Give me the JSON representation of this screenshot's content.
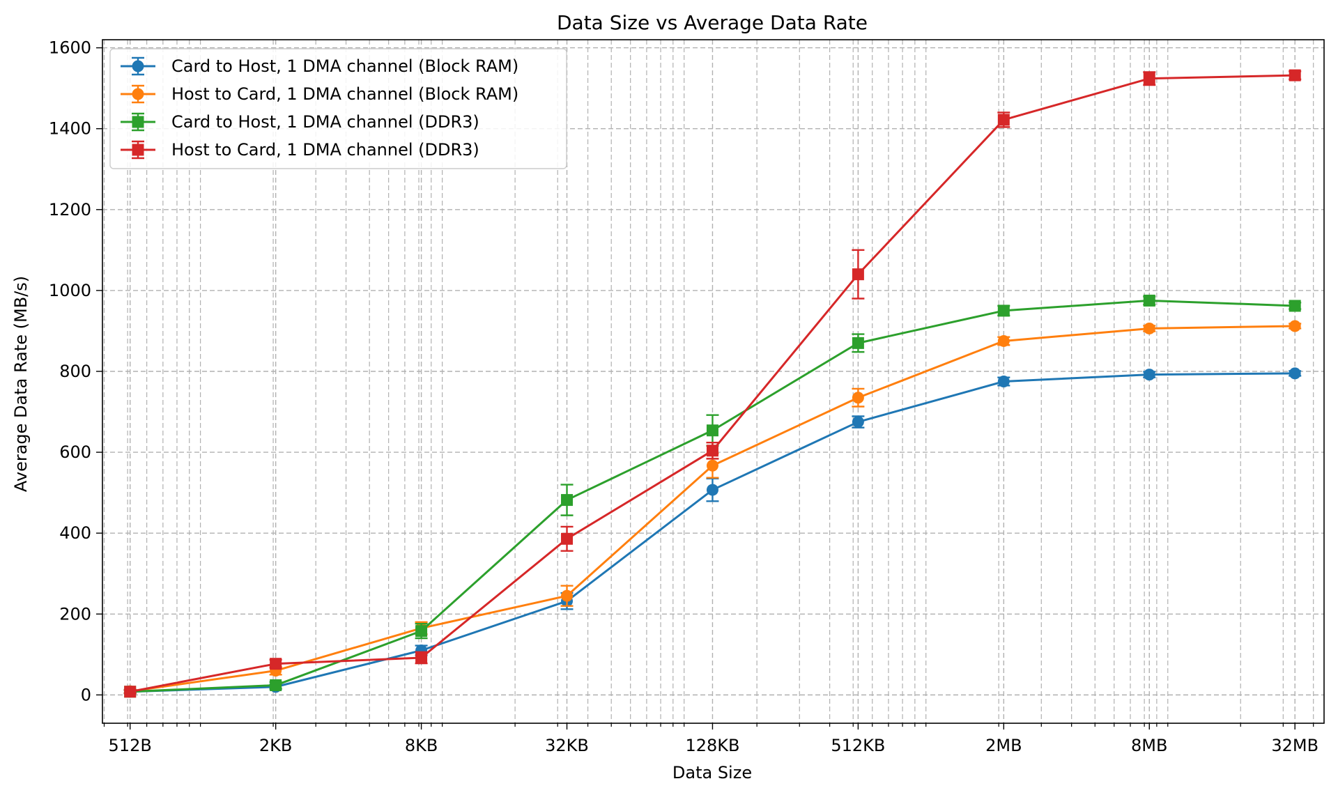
{
  "chart_data": {
    "type": "line",
    "title": "Data Size vs Average Data Rate",
    "xlabel": "Data Size",
    "ylabel": "Average Data Rate (MB/s)",
    "x_scale": "log2",
    "x": [
      512,
      2048,
      8192,
      32768,
      131072,
      524288,
      2097152,
      8388608,
      33554432
    ],
    "x_tick_labels": [
      "512B",
      "2KB",
      "8KB",
      "32KB",
      "128KB",
      "512KB",
      "2MB",
      "8MB",
      "32MB"
    ],
    "ylim": [
      -70,
      1620
    ],
    "y_ticks": [
      0,
      200,
      400,
      600,
      800,
      1000,
      1200,
      1400,
      1600
    ],
    "grid": true,
    "legend_position": "upper-left",
    "series": [
      {
        "name": "Card to Host, 1 DMA channel (Block RAM)",
        "color": "#1f77b4",
        "marker": "circle",
        "values": [
          8,
          20,
          110,
          232,
          507,
          675,
          775,
          792,
          795
        ],
        "errors": [
          4,
          6,
          12,
          20,
          28,
          14,
          10,
          7,
          6
        ]
      },
      {
        "name": "Host to Card, 1 DMA channel (Block RAM)",
        "color": "#ff7f0e",
        "marker": "circle",
        "values": [
          9,
          60,
          165,
          245,
          567,
          735,
          875,
          906,
          912
        ],
        "errors": [
          4,
          10,
          15,
          25,
          30,
          22,
          10,
          7,
          6
        ]
      },
      {
        "name": "Card to Host, 1 DMA channel (DDR3)",
        "color": "#2ca02c",
        "marker": "square",
        "values": [
          8,
          24,
          158,
          482,
          654,
          870,
          950,
          975,
          962
        ],
        "errors": [
          4,
          8,
          18,
          38,
          38,
          22,
          12,
          10,
          8
        ]
      },
      {
        "name": "Host to Card, 1 DMA channel (DDR3)",
        "color": "#d62728",
        "marker": "square",
        "values": [
          8,
          77,
          92,
          386,
          604,
          1040,
          1422,
          1524,
          1532
        ],
        "errors": [
          4,
          10,
          14,
          30,
          20,
          60,
          18,
          16,
          10
        ]
      }
    ]
  }
}
